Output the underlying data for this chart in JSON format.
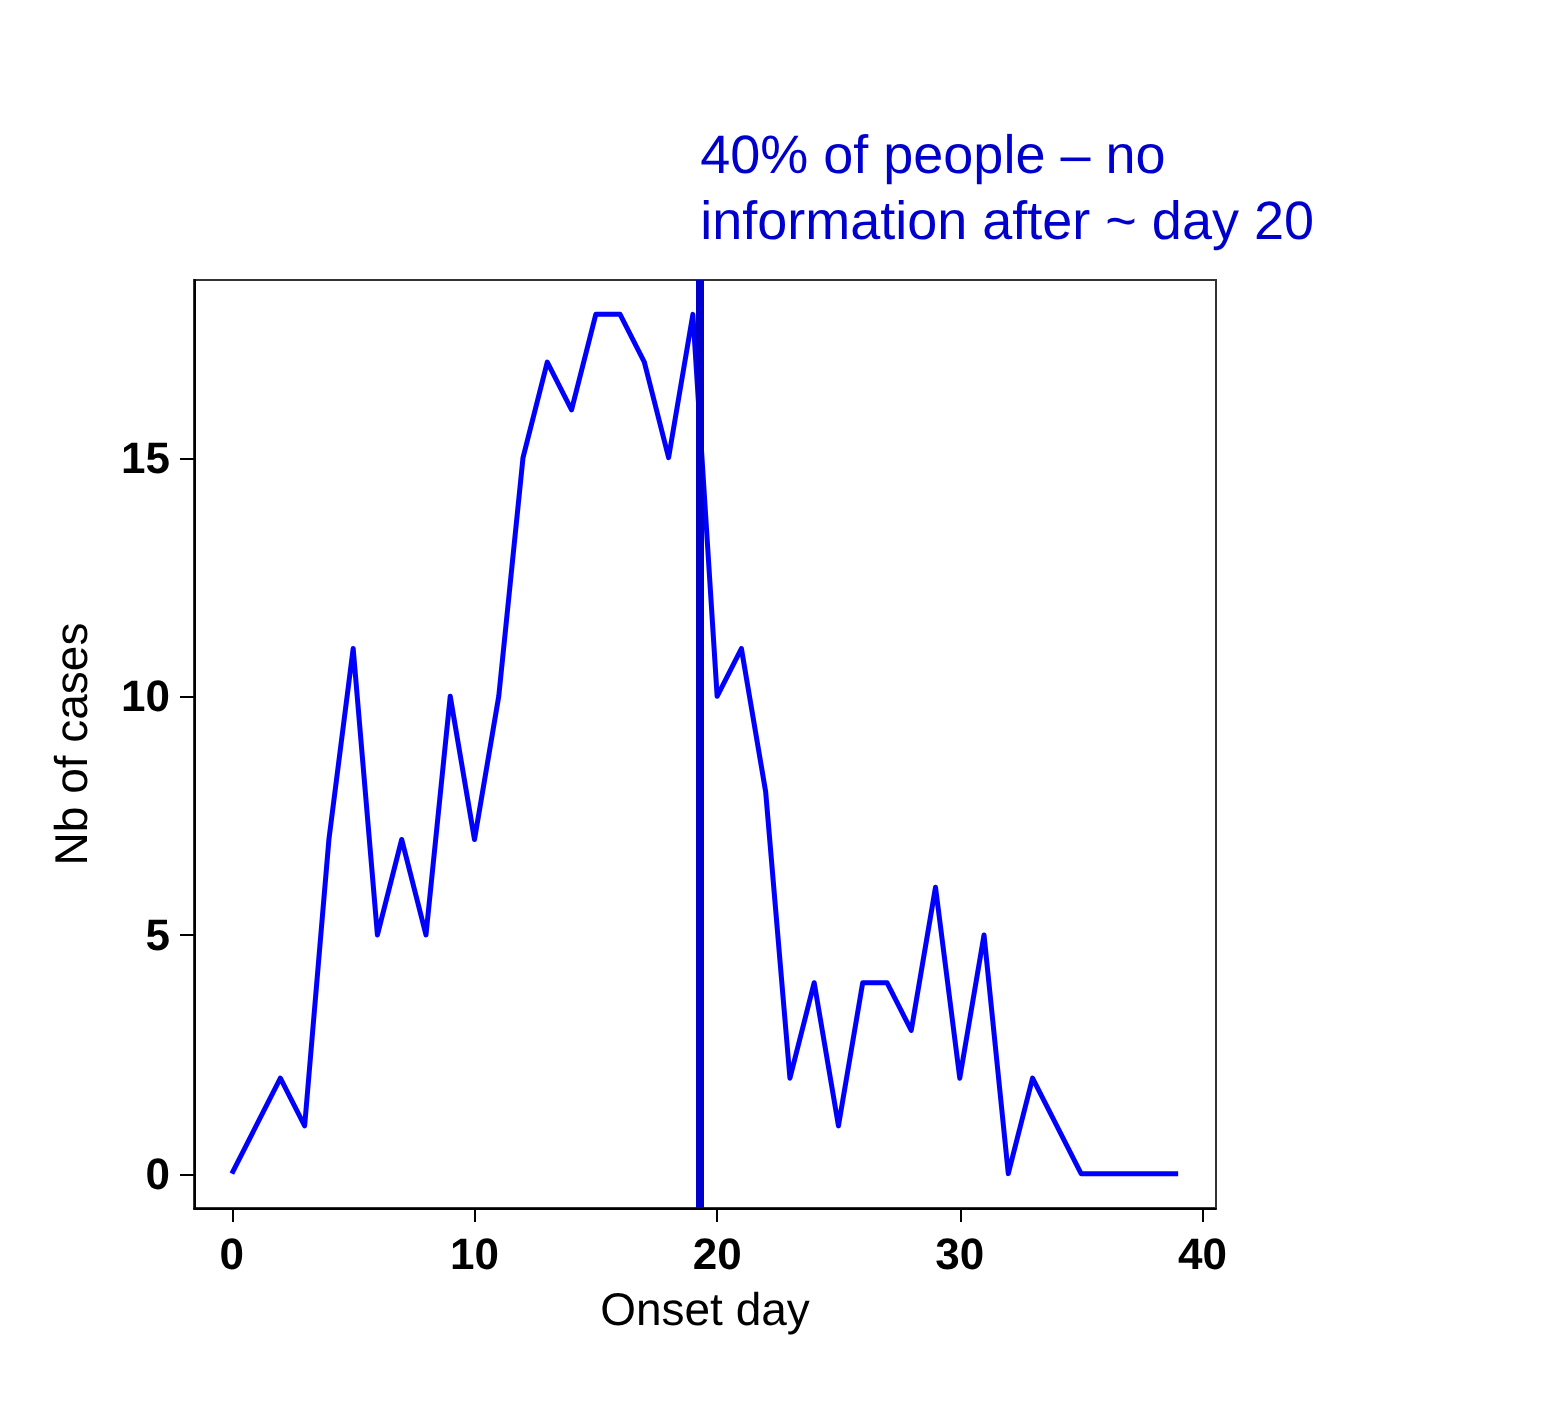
{
  "chart_data": {
    "type": "line",
    "xlabel": "Onset day",
    "ylabel": "Nb of cases",
    "x": [
      0,
      1,
      2,
      3,
      4,
      5,
      6,
      7,
      8,
      9,
      10,
      11,
      12,
      13,
      14,
      15,
      16,
      17,
      18,
      19,
      20,
      21,
      22,
      23,
      24,
      25,
      26,
      27,
      28,
      29,
      30,
      31,
      32,
      33,
      34,
      35,
      36,
      37,
      38,
      39
    ],
    "series": [
      {
        "color": "#0000ff",
        "values": [
          0,
          1,
          2,
          1,
          7,
          11,
          5,
          7,
          5,
          10,
          7,
          10,
          15,
          17,
          16,
          18,
          18,
          17,
          15,
          18,
          10,
          11,
          8,
          2,
          4,
          1,
          4,
          4,
          3,
          6,
          2,
          5,
          0,
          2,
          1,
          0,
          0,
          0,
          0,
          0
        ]
      }
    ],
    "xlim": [
      -1.56,
      40.56
    ],
    "xticks": [
      0,
      10,
      20,
      30,
      40
    ],
    "ylim": [
      -0.72,
      18.72
    ],
    "yticks": [
      0,
      5,
      10,
      15
    ],
    "ref_lines": [
      {
        "axis": "x",
        "value": 19.3,
        "label": "40% of people – no information after ~ day 20",
        "color": "#0000cc",
        "line_style": "solid"
      }
    ],
    "grid": false,
    "marker": "none",
    "line_style": "solid"
  }
}
